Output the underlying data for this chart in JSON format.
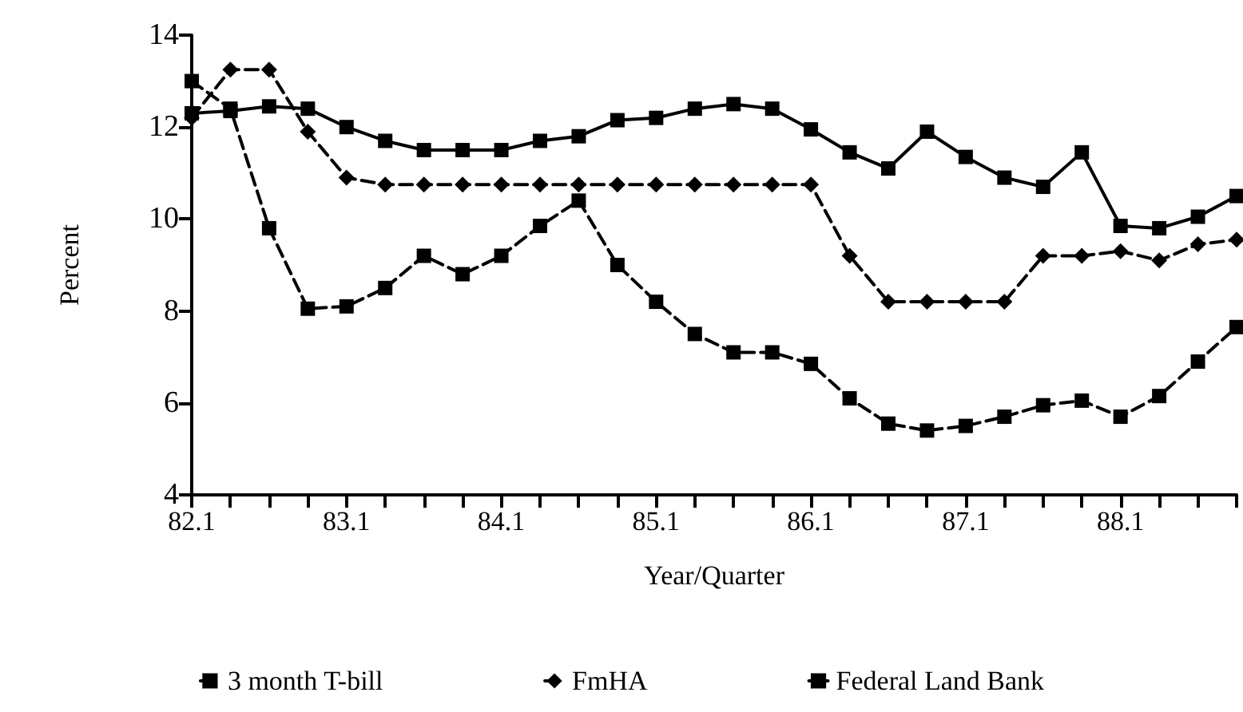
{
  "chart_data": {
    "type": "line",
    "xlabel": "Year/Quarter",
    "ylabel": "Percent",
    "categories": [
      "82.1",
      null,
      null,
      null,
      "83.1",
      null,
      null,
      null,
      "84.1",
      null,
      null,
      null,
      "85.1",
      null,
      null,
      null,
      "86.1",
      null,
      null,
      null,
      "87.1",
      null,
      null,
      null,
      "88.1",
      null,
      null,
      null
    ],
    "ylim": [
      4,
      14
    ],
    "yticks": [
      4,
      6,
      8,
      10,
      12,
      14
    ],
    "grid": false,
    "legend": "bottom",
    "series": [
      {
        "name": "3 month T-bill",
        "color": "#000000",
        "marker": "square",
        "line_style": "dashed",
        "values": [
          13.0,
          12.4,
          9.8,
          8.05,
          8.1,
          8.5,
          9.2,
          8.8,
          9.2,
          9.85,
          10.4,
          9.0,
          8.2,
          7.5,
          7.1,
          7.1,
          6.85,
          6.1,
          5.55,
          5.4,
          5.5,
          5.7,
          5.95,
          6.05,
          5.7,
          6.15,
          6.9,
          7.65
        ]
      },
      {
        "name": "FmHA",
        "color": "#000000",
        "marker": "diamond",
        "line_style": "dashed",
        "values": [
          12.2,
          13.25,
          13.25,
          11.9,
          10.9,
          10.75,
          10.75,
          10.75,
          10.75,
          10.75,
          10.75,
          10.75,
          10.75,
          10.75,
          10.75,
          10.75,
          10.75,
          9.2,
          8.2,
          8.2,
          8.2,
          8.2,
          9.2,
          9.2,
          9.3,
          9.1,
          9.45,
          9.55
        ]
      },
      {
        "name": "Federal Land Bank",
        "color": "#000000",
        "marker": "square",
        "line_style": "solid",
        "values": [
          12.3,
          12.35,
          12.45,
          12.4,
          12.0,
          11.7,
          11.5,
          11.5,
          11.5,
          11.7,
          11.8,
          12.15,
          12.2,
          12.4,
          12.5,
          12.4,
          11.95,
          11.45,
          11.1,
          11.9,
          11.35,
          10.9,
          10.7,
          11.45,
          9.85,
          9.8,
          10.05,
          10.5
        ]
      }
    ]
  }
}
